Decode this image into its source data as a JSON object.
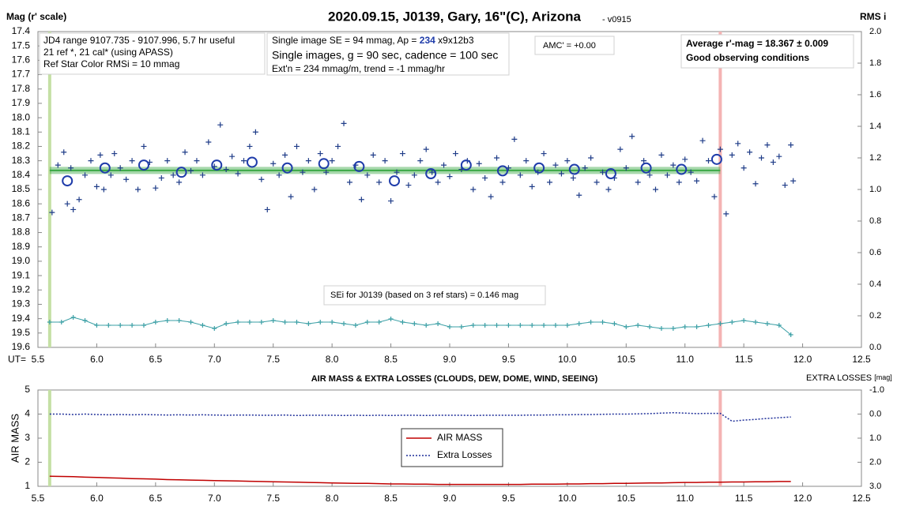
{
  "chart_data": [
    {
      "type": "scatter",
      "title": "2020.09.15, J0139, Gary, 16\"(C), Arizona",
      "subtitle": "- v0915",
      "ylabel": "Mag (r' scale)",
      "y2label": "RMS i",
      "xlabel": "UT=",
      "xlim": [
        5.5,
        12.5
      ],
      "xticks": [
        5.5,
        {
          "value": 6.0,
          "label": "6.0"
        },
        6.5,
        {
          "value": 7.0,
          "label": "7.0"
        },
        7.5,
        {
          "value": 8.0,
          "label": "8.0"
        },
        8.5,
        {
          "value": 9.0,
          "label": "9.0"
        },
        9.5,
        {
          "value": 10.0,
          "label": "10.0"
        },
        10.5,
        {
          "value": 11.0,
          "label": "11.0"
        },
        11.5,
        {
          "value": 12.0,
          "label": "12.0"
        },
        12.5
      ],
      "ylim": [
        19.6,
        17.4
      ],
      "yticks": [
        17.4,
        17.5,
        17.6,
        17.7,
        17.8,
        17.9,
        {
          "value": 18.0,
          "label": "18.0"
        },
        18.1,
        18.2,
        18.3,
        18.4,
        18.5,
        18.6,
        18.7,
        18.8,
        18.9,
        {
          "value": 19.0,
          "label": "19.0"
        },
        19.1,
        19.2,
        19.3,
        19.4,
        19.5,
        19.6
      ],
      "y2lim": [
        0,
        2.0
      ],
      "y2ticks": [
        {
          "value": 0.0,
          "label": "0.0"
        },
        0.2,
        0.4,
        0.6,
        0.8,
        {
          "value": 1.0,
          "label": "1.0"
        },
        1.2,
        1.4,
        1.6,
        1.8,
        {
          "value": 2.0,
          "label": "2.0"
        }
      ],
      "markers": [
        {
          "x": 5.6,
          "color": "#c5e0a5"
        },
        {
          "x": 11.3,
          "color": "#f4b3b3"
        }
      ],
      "mean_band": {
        "value": 18.367,
        "color": "#3aa845"
      },
      "series": [
        {
          "kind": "cross",
          "color": "#1f3c88",
          "x": [
            5.62,
            5.67,
            5.72,
            5.75,
            5.78,
            5.8,
            5.85,
            5.9,
            5.95,
            6.0,
            6.03,
            6.06,
            6.12,
            6.15,
            6.2,
            6.25,
            6.3,
            6.35,
            6.4,
            6.45,
            6.5,
            6.55,
            6.6,
            6.65,
            6.7,
            6.75,
            6.8,
            6.85,
            6.9,
            6.95,
            7.0,
            7.05,
            7.1,
            7.15,
            7.2,
            7.25,
            7.3,
            7.35,
            7.4,
            7.45,
            7.5,
            7.55,
            7.6,
            7.65,
            7.7,
            7.75,
            7.8,
            7.85,
            7.9,
            7.95,
            8.0,
            8.05,
            8.1,
            8.15,
            8.2,
            8.25,
            8.3,
            8.35,
            8.4,
            8.45,
            8.5,
            8.55,
            8.6,
            8.65,
            8.7,
            8.75,
            8.8,
            8.85,
            8.9,
            8.95,
            9.0,
            9.05,
            9.1,
            9.15,
            9.2,
            9.25,
            9.3,
            9.35,
            9.4,
            9.45,
            9.5,
            9.55,
            9.6,
            9.65,
            9.7,
            9.75,
            9.8,
            9.85,
            9.9,
            9.95,
            10.0,
            10.05,
            10.1,
            10.15,
            10.2,
            10.25,
            10.3,
            10.35,
            10.4,
            10.45,
            10.5,
            10.55,
            10.6,
            10.65,
            10.7,
            10.75,
            10.8,
            10.85,
            10.9,
            10.95,
            11.0,
            11.05,
            11.1,
            11.15,
            11.2,
            11.25,
            11.3,
            11.35,
            11.4,
            11.45,
            11.5,
            11.55,
            11.6,
            11.65,
            11.7,
            11.75,
            11.8,
            11.85,
            11.9,
            11.92
          ],
          "values": [
            18.66,
            18.33,
            18.24,
            18.6,
            18.35,
            18.64,
            18.57,
            18.4,
            18.3,
            18.48,
            18.26,
            18.5,
            18.4,
            18.25,
            18.35,
            18.43,
            18.3,
            18.5,
            18.2,
            18.31,
            18.49,
            18.42,
            18.3,
            18.4,
            18.45,
            18.24,
            18.37,
            18.3,
            18.4,
            18.17,
            18.34,
            18.05,
            18.36,
            18.27,
            18.39,
            18.3,
            18.2,
            18.1,
            18.43,
            18.64,
            18.32,
            18.4,
            18.26,
            18.55,
            18.2,
            18.38,
            18.3,
            18.5,
            18.25,
            18.38,
            18.3,
            18.2,
            18.04,
            18.45,
            18.33,
            18.57,
            18.4,
            18.26,
            18.45,
            18.3,
            18.58,
            18.38,
            18.25,
            18.47,
            18.4,
            18.3,
            18.22,
            18.38,
            18.45,
            18.33,
            18.41,
            18.25,
            18.36,
            18.3,
            18.5,
            18.32,
            18.42,
            18.55,
            18.28,
            18.45,
            18.35,
            18.15,
            18.4,
            18.3,
            18.48,
            18.38,
            18.25,
            18.45,
            18.33,
            18.39,
            18.3,
            18.42,
            18.54,
            18.35,
            18.28,
            18.45,
            18.38,
            18.5,
            18.42,
            18.22,
            18.35,
            18.13,
            18.45,
            18.3,
            18.4,
            18.5,
            18.26,
            18.4,
            18.33,
            18.45,
            18.29,
            18.38,
            18.44,
            18.16,
            18.3,
            18.55,
            18.22,
            18.67,
            18.26,
            18.18,
            18.35,
            18.24,
            18.46,
            18.28,
            18.19,
            18.31,
            18.27,
            18.47,
            18.19,
            18.44
          ]
        },
        {
          "kind": "circle",
          "color": "#1f3caa",
          "x": [
            5.75,
            6.07,
            6.4,
            6.72,
            7.02,
            7.32,
            7.62,
            7.93,
            8.23,
            8.53,
            8.84,
            9.14,
            9.45,
            9.76,
            10.06,
            10.37,
            10.67,
            10.97,
            11.27
          ],
          "values": [
            18.44,
            18.35,
            18.33,
            18.38,
            18.33,
            18.31,
            18.35,
            18.32,
            18.34,
            18.44,
            18.39,
            18.33,
            18.37,
            18.35,
            18.36,
            18.39,
            18.35,
            18.36,
            18.29
          ]
        },
        {
          "kind": "plus-line",
          "axis": "y2",
          "color": "#3a9fa5",
          "x": [
            5.6,
            5.7,
            5.8,
            5.9,
            6.0,
            6.1,
            6.2,
            6.3,
            6.4,
            6.5,
            6.6,
            6.7,
            6.8,
            6.9,
            7.0,
            7.1,
            7.2,
            7.3,
            7.4,
            7.5,
            7.6,
            7.7,
            7.8,
            7.9,
            8.0,
            8.1,
            8.2,
            8.3,
            8.4,
            8.5,
            8.6,
            8.7,
            8.8,
            8.9,
            9.0,
            9.1,
            9.2,
            9.3,
            9.4,
            9.5,
            9.6,
            9.7,
            9.8,
            9.9,
            10.0,
            10.1,
            10.2,
            10.3,
            10.4,
            10.5,
            10.6,
            10.7,
            10.8,
            10.9,
            11.0,
            11.1,
            11.2,
            11.3,
            11.4,
            11.5,
            11.6,
            11.7,
            11.8,
            11.9
          ],
          "values": [
            0.16,
            0.16,
            0.19,
            0.17,
            0.14,
            0.14,
            0.14,
            0.14,
            0.14,
            0.16,
            0.17,
            0.17,
            0.16,
            0.14,
            0.12,
            0.15,
            0.16,
            0.16,
            0.16,
            0.17,
            0.16,
            0.16,
            0.15,
            0.16,
            0.16,
            0.15,
            0.14,
            0.16,
            0.16,
            0.18,
            0.16,
            0.15,
            0.14,
            0.15,
            0.13,
            0.13,
            0.14,
            0.14,
            0.14,
            0.14,
            0.14,
            0.14,
            0.14,
            0.14,
            0.14,
            0.15,
            0.16,
            0.16,
            0.15,
            0.13,
            0.14,
            0.13,
            0.12,
            0.12,
            0.13,
            0.13,
            0.14,
            0.15,
            0.16,
            0.17,
            0.16,
            0.15,
            0.14,
            0.08
          ]
        }
      ],
      "annotations": {
        "range": [
          "JD4 range 9107.735 - 9107.996, 5.7 hr useful",
          "21 ref *, 21 cal* (using APASS)",
          "Ref Star Color RMSi = 10 mmag"
        ],
        "image": [
          [
            "Single image SE = 94 mmag, Ap = ",
            "234",
            " x9x12b3"
          ],
          "Single images, g = 90 sec, cadence = 100 sec",
          "Ext'n = 234 mmag/m, trend = -1 mmag/hr"
        ],
        "amc": "AMC' = +0.00",
        "average": [
          "Average r'-mag =  18.367 ± 0.009",
          "Good observing conditions"
        ],
        "sei": "SEi for J0139 (based on 3 ref stars) = 0.146 mag"
      }
    },
    {
      "type": "line",
      "title": "AIR MASS & EXTRA LOSSES (CLOUDS, DEW, DOME, WIND, SEEING)",
      "ylabel": "AIR MASS",
      "y2label": [
        "EXTRA LOSSES",
        "[mag]"
      ],
      "xlim": [
        5.5,
        12.5
      ],
      "xticks": [
        5.5,
        {
          "value": 6.0,
          "label": "6.0"
        },
        6.5,
        {
          "value": 7.0,
          "label": "7.0"
        },
        7.5,
        {
          "value": 8.0,
          "label": "8.0"
        },
        8.5,
        {
          "value": 9.0,
          "label": "9.0"
        },
        9.5,
        {
          "value": 10.0,
          "label": "10.0"
        },
        10.5,
        {
          "value": 11.0,
          "label": "11.0"
        },
        11.5,
        {
          "value": 12.0,
          "label": "12.0"
        },
        12.5
      ],
      "ylim": [
        1,
        5
      ],
      "yticks": [
        1,
        2,
        3,
        4,
        5
      ],
      "y2lim": [
        3.0,
        -1.0
      ],
      "y2ticks": [
        {
          "value": 3.0,
          "label": "3.0"
        },
        {
          "value": 2.0,
          "label": "2.0"
        },
        {
          "value": 1.0,
          "label": "1.0"
        },
        {
          "value": 0.0,
          "label": "0.0"
        },
        {
          "value": -1.0,
          "label": "-1.0"
        }
      ],
      "markers": [
        {
          "x": 5.6,
          "color": "#c5e0a5"
        },
        {
          "x": 11.3,
          "color": "#f4b3b3"
        }
      ],
      "series": [
        {
          "name": "AIR MASS",
          "color": "#c00000",
          "x": [
            5.6,
            5.7,
            5.8,
            5.9,
            6.0,
            6.1,
            6.2,
            6.3,
            6.4,
            6.5,
            6.6,
            6.7,
            6.8,
            6.9,
            7.0,
            7.1,
            7.2,
            7.3,
            7.4,
            7.5,
            7.6,
            7.7,
            7.8,
            7.9,
            8.0,
            8.1,
            8.2,
            8.3,
            8.4,
            8.5,
            8.6,
            8.7,
            8.8,
            8.9,
            9.0,
            9.1,
            9.2,
            9.3,
            9.4,
            9.5,
            9.6,
            9.7,
            9.8,
            9.9,
            10.0,
            10.1,
            10.2,
            10.3,
            10.4,
            10.5,
            10.6,
            10.7,
            10.8,
            10.9,
            11.0,
            11.1,
            11.2,
            11.3,
            11.4,
            11.5,
            11.6,
            11.7,
            11.8,
            11.9
          ],
          "values": [
            1.42,
            1.41,
            1.4,
            1.38,
            1.37,
            1.35,
            1.34,
            1.32,
            1.31,
            1.3,
            1.28,
            1.27,
            1.26,
            1.25,
            1.24,
            1.23,
            1.22,
            1.21,
            1.2,
            1.19,
            1.18,
            1.17,
            1.16,
            1.15,
            1.14,
            1.13,
            1.12,
            1.12,
            1.11,
            1.1,
            1.1,
            1.09,
            1.09,
            1.08,
            1.08,
            1.08,
            1.08,
            1.08,
            1.08,
            1.08,
            1.08,
            1.09,
            1.09,
            1.09,
            1.1,
            1.1,
            1.11,
            1.11,
            1.12,
            1.12,
            1.13,
            1.14,
            1.14,
            1.15,
            1.16,
            1.16,
            1.17,
            1.17,
            1.18,
            1.18,
            1.19,
            1.19,
            1.2,
            1.2
          ]
        },
        {
          "name": "Extra Losses",
          "axis": "y2",
          "color": "#1f2f99",
          "x": [
            5.6,
            5.7,
            5.8,
            5.9,
            6.0,
            6.1,
            6.2,
            6.3,
            6.4,
            6.5,
            6.6,
            6.7,
            6.8,
            6.9,
            7.0,
            7.1,
            7.2,
            7.3,
            7.4,
            7.5,
            7.6,
            7.7,
            7.8,
            7.9,
            8.0,
            8.1,
            8.2,
            8.3,
            8.4,
            8.5,
            8.6,
            8.7,
            8.8,
            8.9,
            9.0,
            9.1,
            9.2,
            9.3,
            9.4,
            9.5,
            9.6,
            9.7,
            9.8,
            9.9,
            10.0,
            10.1,
            10.2,
            10.3,
            10.4,
            10.5,
            10.6,
            10.7,
            10.8,
            10.9,
            11.0,
            11.1,
            11.2,
            11.3,
            11.4,
            11.5,
            11.6,
            11.7,
            11.8,
            11.9
          ],
          "values": [
            0.0,
            0.0,
            0.02,
            0.0,
            0.02,
            0.03,
            0.02,
            0.03,
            0.02,
            0.03,
            0.04,
            0.03,
            0.04,
            0.03,
            0.04,
            0.05,
            0.04,
            0.04,
            0.05,
            0.05,
            0.04,
            0.06,
            0.05,
            0.05,
            0.05,
            0.06,
            0.05,
            0.06,
            0.05,
            0.06,
            0.05,
            0.05,
            0.06,
            0.05,
            0.05,
            0.05,
            0.06,
            0.05,
            0.05,
            0.05,
            0.05,
            0.04,
            0.04,
            0.03,
            0.03,
            0.02,
            0.02,
            0.01,
            0.0,
            0.0,
            -0.01,
            -0.02,
            -0.04,
            -0.06,
            -0.04,
            -0.02,
            -0.03,
            -0.03,
            0.3,
            0.25,
            0.22,
            0.18,
            0.15,
            0.12
          ]
        }
      ]
    }
  ]
}
